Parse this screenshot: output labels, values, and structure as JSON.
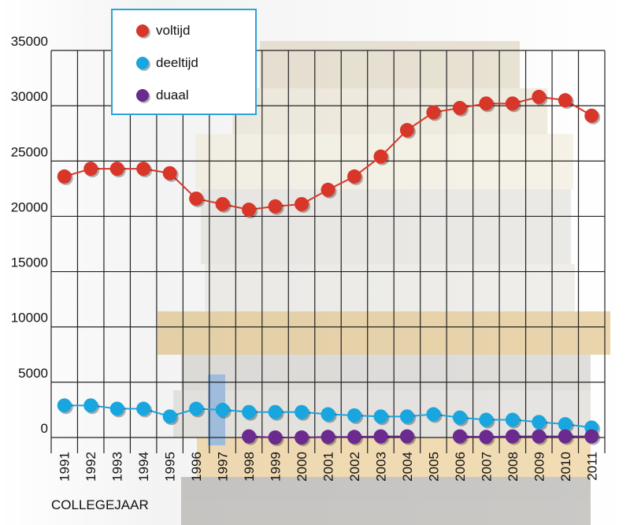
{
  "chart_data": {
    "type": "line",
    "x_label": "COLLEGEJAAR",
    "categories": [
      "1991",
      "1992",
      "1993",
      "1994",
      "1995",
      "1996",
      "1997",
      "1998",
      "1999",
      "2000",
      "2001",
      "2002",
      "2003",
      "2004",
      "2005",
      "2006",
      "2007",
      "2008",
      "2009",
      "2010",
      "2011"
    ],
    "series": [
      {
        "name": "voltijd",
        "color": "#d9362a",
        "values": [
          23600,
          24300,
          24300,
          24300,
          23900,
          21600,
          21100,
          20600,
          20900,
          21100,
          22400,
          23600,
          25400,
          27800,
          29400,
          29800,
          30200,
          30200,
          30800,
          30500,
          29100
        ]
      },
      {
        "name": "deeltijd",
        "color": "#19a6df",
        "values": [
          2900,
          2900,
          2600,
          2600,
          1900,
          2600,
          2500,
          2300,
          2300,
          2300,
          2100,
          2000,
          1900,
          1900,
          2100,
          1800,
          1600,
          1600,
          1400,
          1200,
          900
        ]
      },
      {
        "name": "duaal",
        "color": "#6a2a8e",
        "values": [
          null,
          null,
          null,
          null,
          null,
          null,
          null,
          100,
          0,
          0,
          50,
          50,
          100,
          100,
          null,
          100,
          50,
          100,
          100,
          100,
          100
        ]
      }
    ],
    "ylim": [
      0,
      35000
    ],
    "yticks": [
      0,
      5000,
      10000,
      15000,
      20000,
      25000,
      30000,
      35000
    ],
    "grid": true
  }
}
